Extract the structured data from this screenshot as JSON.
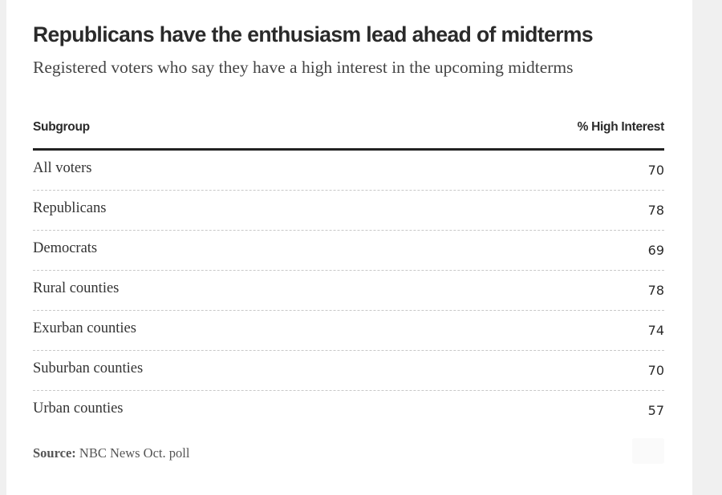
{
  "title": "Republicans have the enthusiasm lead ahead of midterms",
  "subtitle": "Registered voters who say they have a high interest in the upcoming midterms",
  "table": {
    "col_subgroup": "Subgroup",
    "col_value": "% High Interest",
    "rows": [
      {
        "label": "All voters",
        "value": "70"
      },
      {
        "label": "Republicans",
        "value": "78"
      },
      {
        "label": "Democrats",
        "value": "69"
      },
      {
        "label": "Rural counties",
        "value": "78"
      },
      {
        "label": "Exurban counties",
        "value": "74"
      },
      {
        "label": "Suburban counties",
        "value": "70"
      },
      {
        "label": "Urban counties",
        "value": "57"
      }
    ]
  },
  "source": {
    "label": "Source:",
    "text": " NBC News Oct. poll"
  },
  "chart_data": {
    "type": "table",
    "title": "Republicans have the enthusiasm lead ahead of midterms",
    "subtitle": "Registered voters who say they have a high interest in the upcoming midterms",
    "columns": [
      "Subgroup",
      "% High Interest"
    ],
    "categories": [
      "All voters",
      "Republicans",
      "Democrats",
      "Rural counties",
      "Exurban counties",
      "Suburban counties",
      "Urban counties"
    ],
    "values": [
      70,
      78,
      69,
      78,
      74,
      70,
      57
    ]
  }
}
